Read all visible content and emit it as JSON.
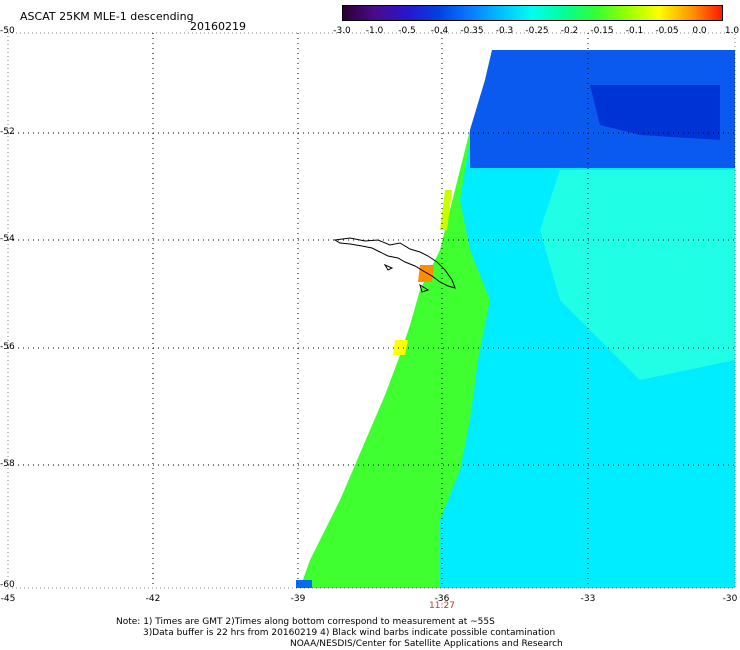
{
  "header": {
    "title": "ASCAT 25KM MLE-1 descending",
    "date": "20160219"
  },
  "colorbar": {
    "labels": [
      "-3.0",
      "-1.0",
      "-0.5",
      "-0.4",
      "-0.35",
      "-0.3",
      "-0.25",
      "-0.2",
      "-0.15",
      "-0.1",
      "-0.05",
      "0.0",
      "1.0"
    ],
    "colors": [
      "#2a0033",
      "#4b0a8a",
      "#2a14cc",
      "#0040e0",
      "#0a78ff",
      "#00c0ff",
      "#00ffee",
      "#00ff99",
      "#33ff33",
      "#99ff00",
      "#ffff00",
      "#ff9900",
      "#ff1a00"
    ]
  },
  "axes": {
    "y_ticks": [
      "-50",
      "-52",
      "-54",
      "-56",
      "-58",
      "-60"
    ],
    "x_ticks": [
      "-45",
      "-42",
      "-39",
      "-36",
      "-33",
      "-30"
    ]
  },
  "time_label": "11:27",
  "notes": [
    "Note: 1) Times are GMT 2)Times along bottom correspond to measurement at ~55S",
    "3)Data buffer is 22 hrs from 20160219 4) Black wind barbs indicate possible contamination",
    "NOAA/NESDIS/Center for Satellite Applications and Research"
  ],
  "map_data": {
    "lon_range": [
      -45,
      -30
    ],
    "lat_range": [
      -60,
      -50
    ],
    "swath_colors": {
      "deep_blue": "#0033d6",
      "blue": "#0a55f0",
      "cyan": "#00e8ff",
      "aqua": "#00ffe0",
      "green": "#33ff22",
      "yellow_green": "#a8ff00",
      "yellow": "#ffff00",
      "orange": "#ff8c00"
    }
  }
}
